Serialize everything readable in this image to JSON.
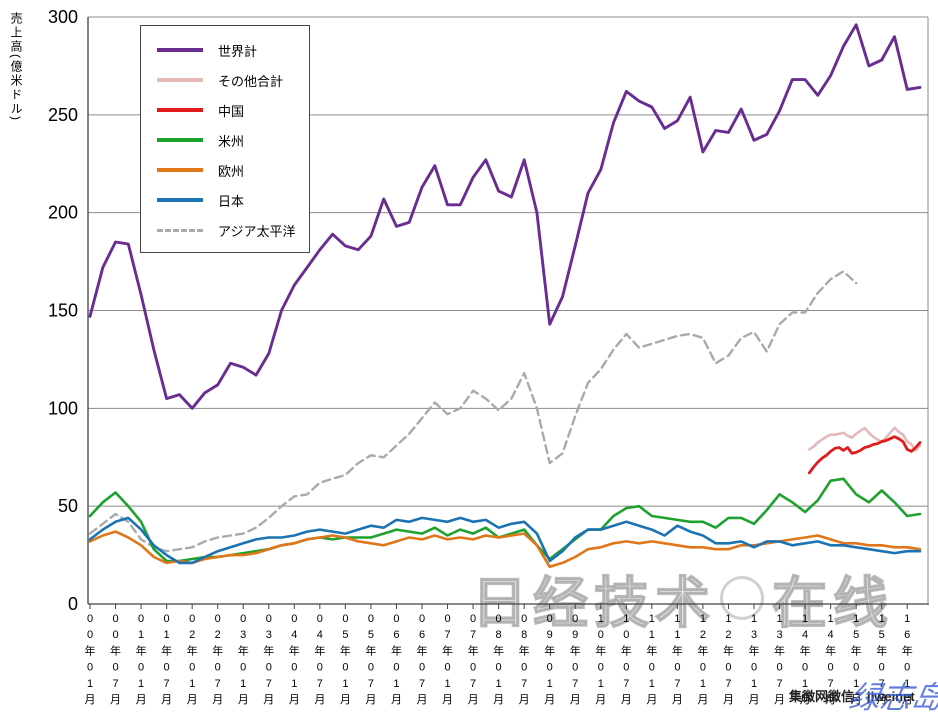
{
  "y_axis": {
    "title": "売上高(億米ドル)",
    "tick_labels": [
      "0",
      "50",
      "100",
      "150",
      "200",
      "250",
      "300"
    ],
    "tick_values": [
      0,
      50,
      100,
      150,
      200,
      250,
      300
    ]
  },
  "x_axis": {
    "labels": [
      "00年01月",
      "00年07月",
      "01年01月",
      "01年07月",
      "02年01月",
      "02年07月",
      "03年01月",
      "03年07月",
      "04年01月",
      "04年07月",
      "05年01月",
      "05年07月",
      "06年01月",
      "06年07月",
      "07年01月",
      "07年07月",
      "08年01月",
      "08年07月",
      "09年01月",
      "09年07月",
      "10年01月",
      "10年07月",
      "11年01月",
      "11年07月",
      "12年01月",
      "12年07月",
      "13年01月",
      "13年07月",
      "14年01月",
      "14年07月",
      "15年01月",
      "15年07月",
      "16年01月"
    ]
  },
  "legend": {
    "items": [
      {
        "label": "世界計",
        "color": "#692d91",
        "dashed": false
      },
      {
        "label": "その他合計",
        "color": "#e6b9b8",
        "dashed": false
      },
      {
        "label": "中国",
        "color": "#e01b1b",
        "dashed": false
      },
      {
        "label": "米州",
        "color": "#1fa12e",
        "dashed": false
      },
      {
        "label": "欧州",
        "color": "#e0761a",
        "dashed": false
      },
      {
        "label": "日本",
        "color": "#1c73b4",
        "dashed": false
      },
      {
        "label": "アジア太平洋",
        "color": "#aaaaaa",
        "dashed": true
      }
    ]
  },
  "watermarks": {
    "nikkei_part1": "日经技术",
    "nikkei_part2": "在线",
    "weixin": "集微网微信：jiweinet",
    "blue_script": "绿志岛"
  },
  "chart_data": {
    "type": "line",
    "title": "",
    "xlabel": "",
    "ylabel": "売上高(億米ドル)",
    "ylim": [
      0,
      300
    ],
    "grid": "horizontal",
    "legend_position": "top-left-inside",
    "x_start": "2000-01",
    "x_unit": "month",
    "series": [
      {
        "name": "アジア太平洋",
        "key": "asia_pacific",
        "color": "#aaaaaa",
        "dashed": true,
        "width": 2.4,
        "start_month": 0,
        "step_months": 3,
        "values": [
          36,
          41,
          46,
          42,
          33,
          29,
          27,
          28,
          29,
          32,
          34,
          35,
          36,
          39,
          44,
          50,
          55,
          56,
          62,
          64,
          66,
          72,
          76,
          75,
          81,
          87,
          95,
          103,
          97,
          100,
          109,
          105,
          99,
          105,
          118,
          100,
          72,
          77,
          96,
          113,
          120,
          130,
          138,
          131,
          133,
          135,
          137,
          138,
          136,
          123,
          127,
          136,
          139,
          129,
          143,
          149,
          149,
          159,
          166,
          170,
          164
        ]
      },
      {
        "name": "その他合計",
        "key": "others_total",
        "color": "#e6b9b8",
        "dashed": false,
        "width": 2.6,
        "start_month": 169,
        "step_months": 1,
        "values": [
          79,
          80.5,
          82.5,
          84,
          85.5,
          86.5,
          86.5,
          87,
          87.5,
          86,
          85,
          87,
          88.5,
          90,
          87.5,
          85.5,
          84,
          83,
          85,
          87.5,
          90,
          88,
          86.5,
          83,
          81.5,
          78.5,
          81
        ]
      },
      {
        "name": "米州",
        "key": "americas",
        "color": "#1fa12e",
        "dashed": false,
        "width": 2.6,
        "start_month": 0,
        "step_months": 3,
        "values": [
          45,
          52,
          57,
          50,
          42,
          28,
          22,
          22,
          23,
          24,
          24,
          25,
          26,
          27,
          28,
          30,
          31,
          33,
          34,
          33,
          34,
          34,
          34,
          36,
          38,
          37,
          36,
          39,
          35,
          38,
          36,
          39,
          34,
          36,
          38,
          30,
          23,
          28,
          33,
          38,
          38,
          45,
          49,
          50,
          45,
          44,
          43,
          42,
          42,
          39,
          44,
          44,
          41,
          48,
          56,
          52,
          47,
          53,
          63,
          64,
          56,
          52,
          58,
          52,
          45,
          46
        ]
      },
      {
        "name": "欧州",
        "key": "europe",
        "color": "#e0761a",
        "dashed": false,
        "width": 2.6,
        "start_month": 0,
        "step_months": 3,
        "values": [
          32,
          35,
          37,
          34,
          30,
          24,
          21,
          22,
          21,
          23,
          24,
          25,
          25,
          26,
          28,
          30,
          31,
          33,
          34,
          35,
          34,
          32,
          31,
          30,
          32,
          34,
          33,
          35,
          33,
          34,
          33,
          35,
          34,
          35,
          36,
          30,
          19,
          21,
          24,
          28,
          29,
          31,
          32,
          31,
          32,
          31,
          30,
          29,
          29,
          28,
          28,
          30,
          30,
          31,
          32,
          33,
          34,
          35,
          33,
          31,
          31,
          30,
          30,
          29,
          29,
          28
        ]
      },
      {
        "name": "日本",
        "key": "japan",
        "color": "#1c73b4",
        "dashed": false,
        "width": 2.6,
        "start_month": 0,
        "step_months": 3,
        "values": [
          33,
          38,
          42,
          44,
          38,
          30,
          25,
          21,
          21,
          24,
          27,
          29,
          31,
          33,
          34,
          34,
          35,
          37,
          38,
          37,
          36,
          38,
          40,
          39,
          43,
          42,
          44,
          43,
          42,
          44,
          42,
          43,
          39,
          41,
          42,
          36,
          22,
          27,
          34,
          38,
          38,
          40,
          42,
          40,
          38,
          35,
          40,
          37,
          35,
          31,
          31,
          32,
          29,
          32,
          32,
          30,
          31,
          32,
          30,
          30,
          29,
          28,
          27,
          26,
          27,
          27
        ]
      },
      {
        "name": "中国",
        "key": "china",
        "color": "#e01b1b",
        "dashed": false,
        "width": 2.8,
        "start_month": 169,
        "step_months": 1,
        "values": [
          67,
          70,
          72.5,
          74.5,
          76,
          78,
          79.5,
          80,
          78.5,
          80,
          77,
          77.5,
          78.5,
          80,
          80.5,
          81.5,
          82,
          83,
          83.5,
          84.5,
          85.5,
          84.5,
          83,
          79,
          78,
          80,
          82.5
        ]
      },
      {
        "name": "世界計",
        "key": "world_total",
        "color": "#692d91",
        "dashed": false,
        "width": 2.9,
        "start_month": 0,
        "step_months": 3,
        "values": [
          147,
          172,
          185,
          184,
          158,
          130,
          105,
          107,
          100,
          108,
          112,
          123,
          121,
          117,
          128,
          150,
          163,
          172,
          181,
          189,
          183,
          181,
          188,
          207,
          193,
          195,
          213,
          224,
          204,
          204,
          218,
          227,
          211,
          208,
          227,
          200,
          143,
          157,
          183,
          210,
          222,
          246,
          262,
          257,
          254,
          243,
          247,
          259,
          231,
          242,
          241,
          253,
          237,
          240,
          252,
          268,
          268,
          260,
          270,
          285,
          296,
          275,
          278,
          290,
          263,
          264
        ]
      }
    ]
  }
}
